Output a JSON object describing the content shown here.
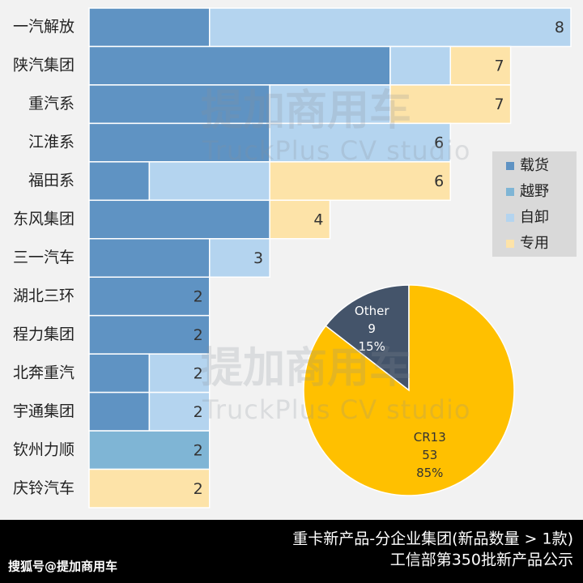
{
  "chart_data": [
    {
      "type": "stacked-bar-horizontal",
      "categories": [
        "一汽解放",
        "陕汽集团",
        "重汽系",
        "江淮系",
        "福田系",
        "东风集团",
        "三一汽车",
        "湖北三环",
        "程力集团",
        "北奔重汽",
        "宇通集团",
        "钦州力顺",
        "庆铃汽车"
      ],
      "series": [
        {
          "name": "载货",
          "color": "#5f93c3",
          "values": [
            2,
            5,
            3,
            3,
            1,
            3,
            2,
            2,
            2,
            1,
            1,
            0,
            0
          ]
        },
        {
          "name": "越野",
          "color": "#7fb5d5",
          "values": [
            0,
            0,
            0,
            0,
            0,
            0,
            0,
            0,
            0,
            0,
            0,
            2,
            0
          ]
        },
        {
          "name": "自卸",
          "color": "#b4d4ef",
          "values": [
            6,
            1,
            2,
            3,
            2,
            0,
            1,
            0,
            0,
            1,
            1,
            0,
            0
          ]
        },
        {
          "name": "专用",
          "color": "#fde3a8",
          "values": [
            0,
            1,
            2,
            0,
            3,
            1,
            0,
            0,
            0,
            0,
            0,
            0,
            2
          ]
        }
      ],
      "totals": [
        8,
        7,
        7,
        6,
        6,
        4,
        3,
        2,
        2,
        2,
        2,
        2,
        2
      ],
      "xlim": [
        0,
        8
      ],
      "legend": "right"
    },
    {
      "type": "pie",
      "categories": [
        "Other",
        "CR13"
      ],
      "values": [
        9,
        53
      ],
      "percent_labels": [
        "15%",
        "85%"
      ],
      "colors": [
        "#44546a",
        "#ffc000"
      ]
    }
  ],
  "watermark": {
    "brand": "提加商用车",
    "studio": "TruckPlus CV studio"
  },
  "footer": {
    "title": "重卡新产品-分企业集团(新品数量 > 1款)",
    "subtitle": "工信部第350批新产品公示",
    "source": "搜狐号@提加商用车"
  }
}
